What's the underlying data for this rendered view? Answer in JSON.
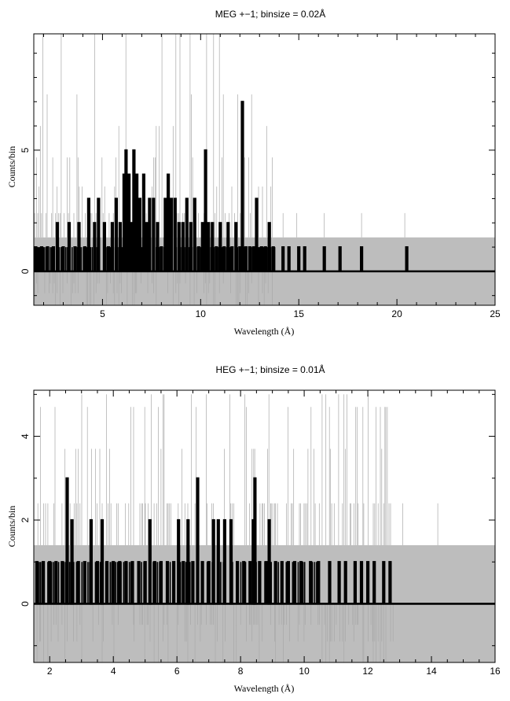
{
  "chart_data": [
    {
      "type": "line",
      "title": "MEG +−1; binsize = 0.02Å",
      "xlabel": "Wavelength (Å)",
      "ylabel": "Counts/bin",
      "xlim": [
        1.5,
        25
      ],
      "ylim": [
        -1.4,
        9.8
      ],
      "x_ticks": [
        "5",
        "10",
        "15",
        "20",
        "25"
      ],
      "y_ticks": [
        "0",
        "5"
      ],
      "grid": false,
      "error_band": 1.4,
      "error_band_color": "#bdbdbd",
      "data_color": "#000000",
      "noise_spikes_high": [
        2.4,
        3.5,
        4.7,
        6.0,
        7.3,
        9.8
      ],
      "noise_spikes_low": [
        -0.5,
        -0.9,
        -1.4
      ],
      "peak_bins": [
        {
          "x": 1.6,
          "y": 1
        },
        {
          "x": 1.9,
          "y": 1
        },
        {
          "x": 2.2,
          "y": 1
        },
        {
          "x": 2.5,
          "y": 1
        },
        {
          "x": 2.7,
          "y": 2
        },
        {
          "x": 3.0,
          "y": 1
        },
        {
          "x": 3.3,
          "y": 2
        },
        {
          "x": 3.6,
          "y": 1
        },
        {
          "x": 3.8,
          "y": 2
        },
        {
          "x": 4.1,
          "y": 1
        },
        {
          "x": 4.3,
          "y": 3
        },
        {
          "x": 4.6,
          "y": 2
        },
        {
          "x": 4.8,
          "y": 3
        },
        {
          "x": 5.1,
          "y": 2
        },
        {
          "x": 5.3,
          "y": 1
        },
        {
          "x": 5.5,
          "y": 2
        },
        {
          "x": 5.7,
          "y": 3
        },
        {
          "x": 5.9,
          "y": 2
        },
        {
          "x": 6.1,
          "y": 4
        },
        {
          "x": 6.2,
          "y": 5
        },
        {
          "x": 6.35,
          "y": 4
        },
        {
          "x": 6.5,
          "y": 2
        },
        {
          "x": 6.6,
          "y": 5
        },
        {
          "x": 6.75,
          "y": 4
        },
        {
          "x": 6.9,
          "y": 3
        },
        {
          "x": 7.1,
          "y": 4
        },
        {
          "x": 7.25,
          "y": 2
        },
        {
          "x": 7.4,
          "y": 3
        },
        {
          "x": 7.6,
          "y": 3
        },
        {
          "x": 7.8,
          "y": 2
        },
        {
          "x": 8.0,
          "y": 1
        },
        {
          "x": 8.2,
          "y": 3
        },
        {
          "x": 8.35,
          "y": 4
        },
        {
          "x": 8.5,
          "y": 3
        },
        {
          "x": 8.7,
          "y": 3
        },
        {
          "x": 8.9,
          "y": 2
        },
        {
          "x": 9.1,
          "y": 2
        },
        {
          "x": 9.3,
          "y": 3
        },
        {
          "x": 9.5,
          "y": 2
        },
        {
          "x": 9.7,
          "y": 3
        },
        {
          "x": 9.9,
          "y": 1
        },
        {
          "x": 10.1,
          "y": 2
        },
        {
          "x": 10.25,
          "y": 5
        },
        {
          "x": 10.4,
          "y": 2
        },
        {
          "x": 10.6,
          "y": 2
        },
        {
          "x": 10.8,
          "y": 1
        },
        {
          "x": 11.0,
          "y": 2
        },
        {
          "x": 11.2,
          "y": 1
        },
        {
          "x": 11.4,
          "y": 2
        },
        {
          "x": 11.6,
          "y": 1
        },
        {
          "x": 11.8,
          "y": 2
        },
        {
          "x": 12.0,
          "y": 1
        },
        {
          "x": 12.13,
          "y": 7
        },
        {
          "x": 12.3,
          "y": 1
        },
        {
          "x": 12.5,
          "y": 1
        },
        {
          "x": 12.7,
          "y": 1
        },
        {
          "x": 12.85,
          "y": 3
        },
        {
          "x": 13.1,
          "y": 1
        },
        {
          "x": 13.3,
          "y": 1
        },
        {
          "x": 13.5,
          "y": 2
        },
        {
          "x": 13.7,
          "y": 1
        },
        {
          "x": 14.2,
          "y": 1
        },
        {
          "x": 14.5,
          "y": 1
        },
        {
          "x": 15.0,
          "y": 1
        },
        {
          "x": 15.3,
          "y": 1
        },
        {
          "x": 16.3,
          "y": 1
        },
        {
          "x": 17.1,
          "y": 1
        },
        {
          "x": 18.2,
          "y": 1
        },
        {
          "x": 20.5,
          "y": 1
        }
      ]
    },
    {
      "type": "line",
      "title": "HEG +−1; binsize = 0.01Å",
      "xlabel": "Wavelength (Å)",
      "ylabel": "Counts/bin",
      "xlim": [
        1.5,
        16
      ],
      "ylim": [
        -1.4,
        5.1
      ],
      "x_ticks": [
        "2",
        "4",
        "6",
        "8",
        "10",
        "12",
        "14",
        "16"
      ],
      "y_ticks": [
        "0",
        "2",
        "4"
      ],
      "grid": false,
      "error_band": 1.4,
      "error_band_color": "#bdbdbd",
      "data_color": "#000000",
      "noise_spikes_high": [
        2.4,
        3.7,
        4.7,
        5.0
      ],
      "noise_spikes_low": [
        -0.5,
        -0.9,
        -1.4
      ],
      "peak_bins": [
        {
          "x": 1.6,
          "y": 1
        },
        {
          "x": 1.8,
          "y": 1
        },
        {
          "x": 2.0,
          "y": 1
        },
        {
          "x": 2.2,
          "y": 1
        },
        {
          "x": 2.4,
          "y": 1
        },
        {
          "x": 2.55,
          "y": 3
        },
        {
          "x": 2.7,
          "y": 2
        },
        {
          "x": 2.9,
          "y": 1
        },
        {
          "x": 3.1,
          "y": 1
        },
        {
          "x": 3.3,
          "y": 2
        },
        {
          "x": 3.5,
          "y": 1
        },
        {
          "x": 3.65,
          "y": 2
        },
        {
          "x": 3.8,
          "y": 1
        },
        {
          "x": 4.0,
          "y": 1
        },
        {
          "x": 4.2,
          "y": 1
        },
        {
          "x": 4.4,
          "y": 1
        },
        {
          "x": 4.6,
          "y": 1
        },
        {
          "x": 4.8,
          "y": 1
        },
        {
          "x": 5.0,
          "y": 1
        },
        {
          "x": 5.15,
          "y": 2
        },
        {
          "x": 5.3,
          "y": 1
        },
        {
          "x": 5.5,
          "y": 1
        },
        {
          "x": 5.7,
          "y": 1
        },
        {
          "x": 5.9,
          "y": 1
        },
        {
          "x": 6.05,
          "y": 2
        },
        {
          "x": 6.2,
          "y": 1
        },
        {
          "x": 6.35,
          "y": 2
        },
        {
          "x": 6.5,
          "y": 1
        },
        {
          "x": 6.65,
          "y": 3
        },
        {
          "x": 6.8,
          "y": 1
        },
        {
          "x": 7.0,
          "y": 1
        },
        {
          "x": 7.15,
          "y": 2
        },
        {
          "x": 7.3,
          "y": 2
        },
        {
          "x": 7.5,
          "y": 2
        },
        {
          "x": 7.7,
          "y": 2
        },
        {
          "x": 7.9,
          "y": 1
        },
        {
          "x": 8.1,
          "y": 1
        },
        {
          "x": 8.3,
          "y": 1
        },
        {
          "x": 8.4,
          "y": 2
        },
        {
          "x": 8.45,
          "y": 3
        },
        {
          "x": 8.6,
          "y": 1
        },
        {
          "x": 8.8,
          "y": 1
        },
        {
          "x": 8.9,
          "y": 2
        },
        {
          "x": 9.1,
          "y": 1
        },
        {
          "x": 9.3,
          "y": 1
        },
        {
          "x": 9.5,
          "y": 1
        },
        {
          "x": 9.7,
          "y": 1
        },
        {
          "x": 9.9,
          "y": 1
        },
        {
          "x": 10.2,
          "y": 1
        },
        {
          "x": 10.45,
          "y": 1
        },
        {
          "x": 10.8,
          "y": 1
        },
        {
          "x": 11.1,
          "y": 1
        },
        {
          "x": 11.3,
          "y": 1
        },
        {
          "x": 11.6,
          "y": 1
        },
        {
          "x": 11.8,
          "y": 1
        },
        {
          "x": 12.0,
          "y": 1
        },
        {
          "x": 12.2,
          "y": 1
        },
        {
          "x": 12.5,
          "y": 1
        },
        {
          "x": 12.7,
          "y": 1
        }
      ]
    }
  ]
}
